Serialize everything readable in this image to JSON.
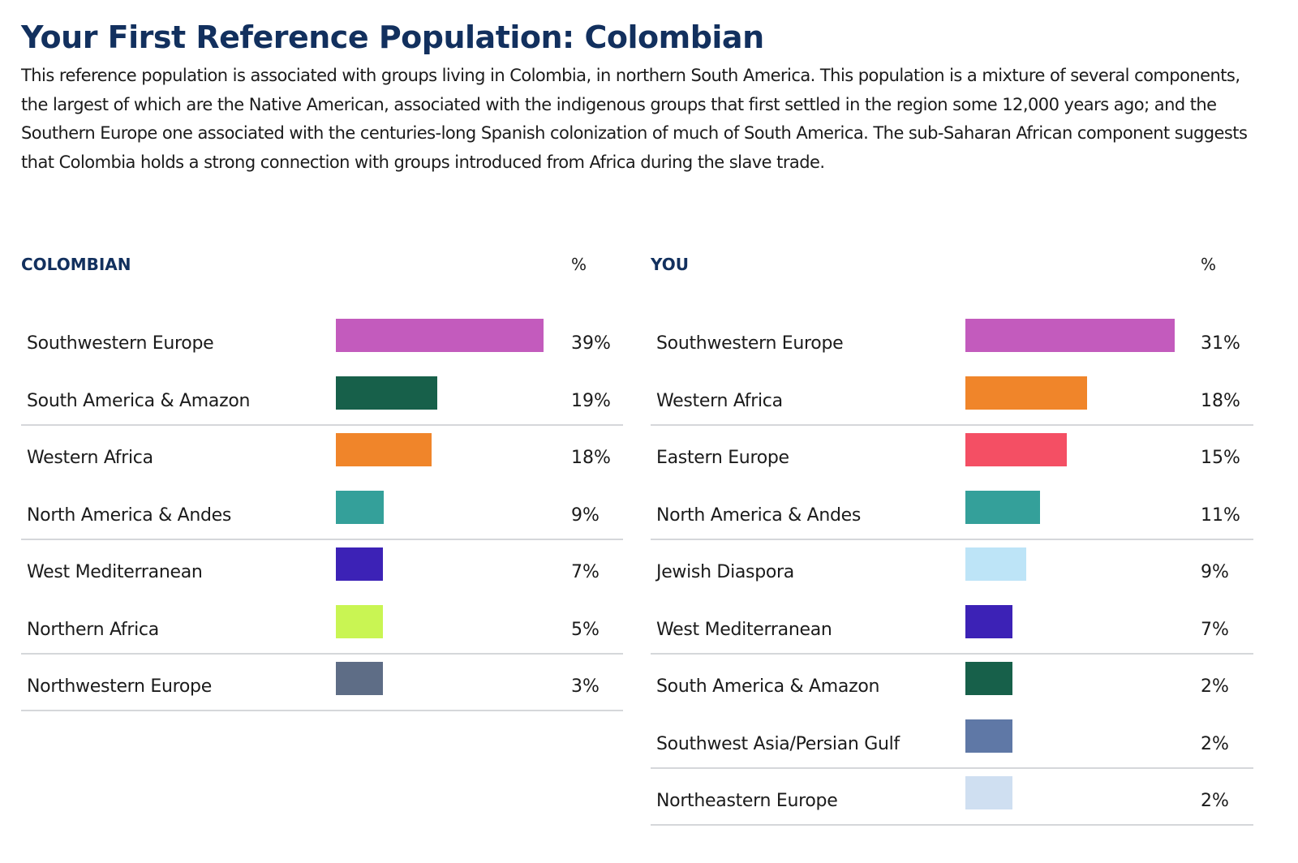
{
  "title": "Your First Reference Population: Colombian",
  "description": "This reference population is associated with groups living in Colombia, in northern South America. This population is a mixture of several components, the largest of which are the Native American, associated with the indigenous groups that first settled in the region some 12,000 years ago; and the Southern Europe one associated with the centuries-long Spanish colonization of much of South America. The sub-Saharan African component suggests that Colombia holds a strong connection with groups introduced from Africa during the slave trade.",
  "chart_data": [
    {
      "type": "bar",
      "title": "COLOMBIAN",
      "value_header": "%",
      "categories": [
        "Southwestern Europe",
        "South America & Amazon",
        "Western Africa",
        "North America & Andes",
        "West Mediterranean",
        "Northern Africa",
        "Northwestern Europe"
      ],
      "values": [
        39,
        19,
        18,
        9,
        7,
        5,
        3
      ],
      "value_labels": [
        "39%",
        "19%",
        "18%",
        "9%",
        "7%",
        "5%",
        "3%"
      ],
      "colors": [
        "#c35bbd",
        "#17604a",
        "#f0852a",
        "#34a09a",
        "#3c22b6",
        "#c9f553",
        "#5e6d86"
      ]
    },
    {
      "type": "bar",
      "title": "YOU",
      "value_header": "%",
      "categories": [
        "Southwestern Europe",
        "Western Africa",
        "Eastern Europe",
        "North America & Andes",
        "Jewish Diaspora",
        "West Mediterranean",
        "South America & Amazon",
        "Southwest Asia/Persian Gulf",
        "Northeastern Europe"
      ],
      "values": [
        31,
        18,
        15,
        11,
        9,
        7,
        2,
        2,
        2
      ],
      "value_labels": [
        "31%",
        "18%",
        "15%",
        "11%",
        "9%",
        "7%",
        "2%",
        "2%",
        "2%"
      ],
      "colors": [
        "#c35bbd",
        "#f0852a",
        "#f44f64",
        "#34a09a",
        "#bde4f7",
        "#3c22b6",
        "#17604a",
        "#5f78a6",
        "#cfdff1"
      ]
    }
  ]
}
